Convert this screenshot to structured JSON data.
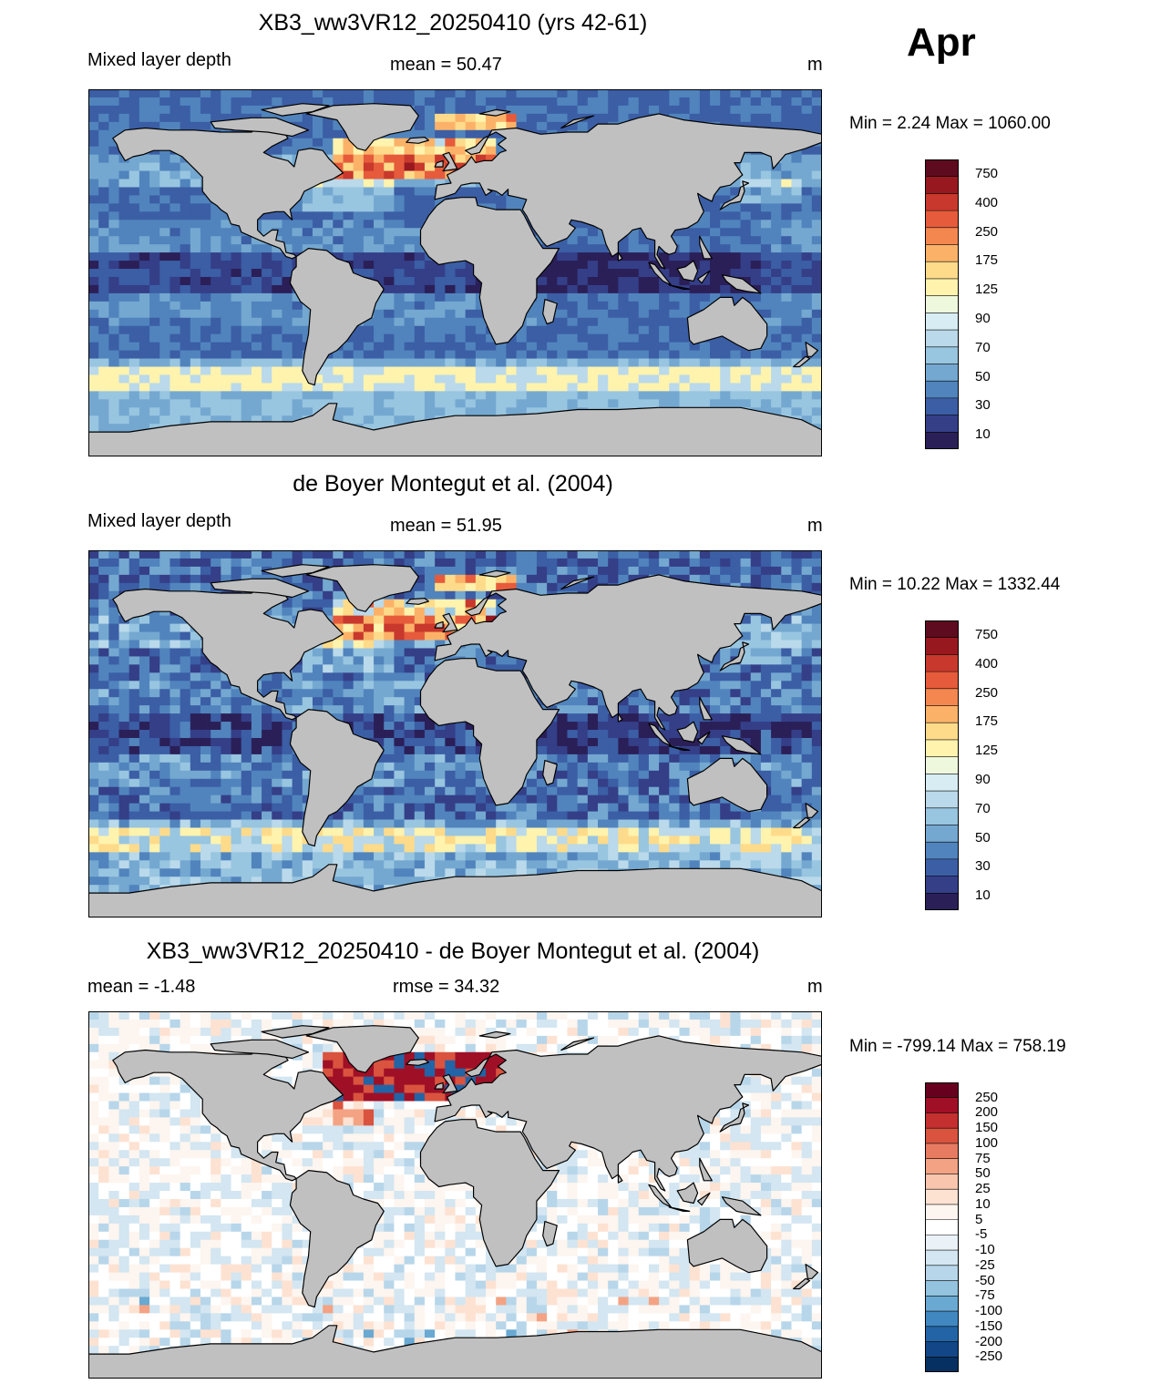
{
  "month": "Apr",
  "panels": [
    {
      "title": "XB3_ww3VR12_20250410 (yrs 42-61)",
      "left_label": "Mixed layer depth",
      "center_label": "mean =  50.47",
      "units": "m",
      "minmax": "Min =   2.24 Max = 1060.00",
      "colorbar_labels": [
        "750",
        "400",
        "250",
        "175",
        "125",
        "90",
        "70",
        "50",
        "30",
        "10"
      ]
    },
    {
      "title": "de Boyer Montegut et al. (2004)",
      "left_label": "Mixed layer depth",
      "center_label": "mean =  51.95",
      "units": "m",
      "minmax": "Min =  10.22 Max = 1332.44",
      "colorbar_labels": [
        "750",
        "400",
        "250",
        "175",
        "125",
        "90",
        "70",
        "50",
        "30",
        "10"
      ]
    },
    {
      "title": "XB3_ww3VR12_20250410 - de Boyer Montegut et al. (2004)",
      "left_label": "mean =  -1.48",
      "center_label": "rmse =  34.32",
      "units": "m",
      "minmax": "Min = -799.14 Max = 758.19",
      "colorbar_labels": [
        "250",
        "200",
        "150",
        "100",
        "75",
        "50",
        "25",
        "10",
        "5",
        "-5",
        "-10",
        "-25",
        "-50",
        "-75",
        "-100",
        "-150",
        "-200",
        "-250"
      ]
    }
  ],
  "colors": {
    "land": "#c0c0c0",
    "seq_colorbar": [
      "#5e0b20",
      "#98181f",
      "#c8382c",
      "#e65b3b",
      "#f4864f",
      "#fbb268",
      "#fedb8a",
      "#fff3ae",
      "#eef8dd",
      "#d7edf3",
      "#bad9ea",
      "#98c5e0",
      "#74a8d0",
      "#5184bd",
      "#3b5ea5",
      "#343f88",
      "#2b1f58"
    ],
    "div_colorbar": [
      "#67001f",
      "#9f1027",
      "#c42f2f",
      "#d9533f",
      "#e77b62",
      "#f3a384",
      "#f9c6ad",
      "#fde2d2",
      "#fdf5ef",
      "#ffffff",
      "#eaf2f8",
      "#d3e6f1",
      "#b7d6ea",
      "#93c3df",
      "#6aa9d2",
      "#4188c0",
      "#2364a6",
      "#124687",
      "#053061"
    ],
    "seq_ocean": [
      "#2b1f58",
      "#343f88",
      "#3b5ea5",
      "#5184bd",
      "#74a8d0",
      "#98c5e0",
      "#bad9ea",
      "#fff3ae",
      "#fedb8a",
      "#fbb268",
      "#e65b3b",
      "#c8382c",
      "#98181f"
    ],
    "div_ocean": [
      "#2364a6",
      "#6aa9d2",
      "#b7d6ea",
      "#d3e6f1",
      "#ffffff",
      "#fdf5ef",
      "#fde2d2",
      "#f3a384",
      "#d9533f",
      "#9f1027"
    ]
  }
}
